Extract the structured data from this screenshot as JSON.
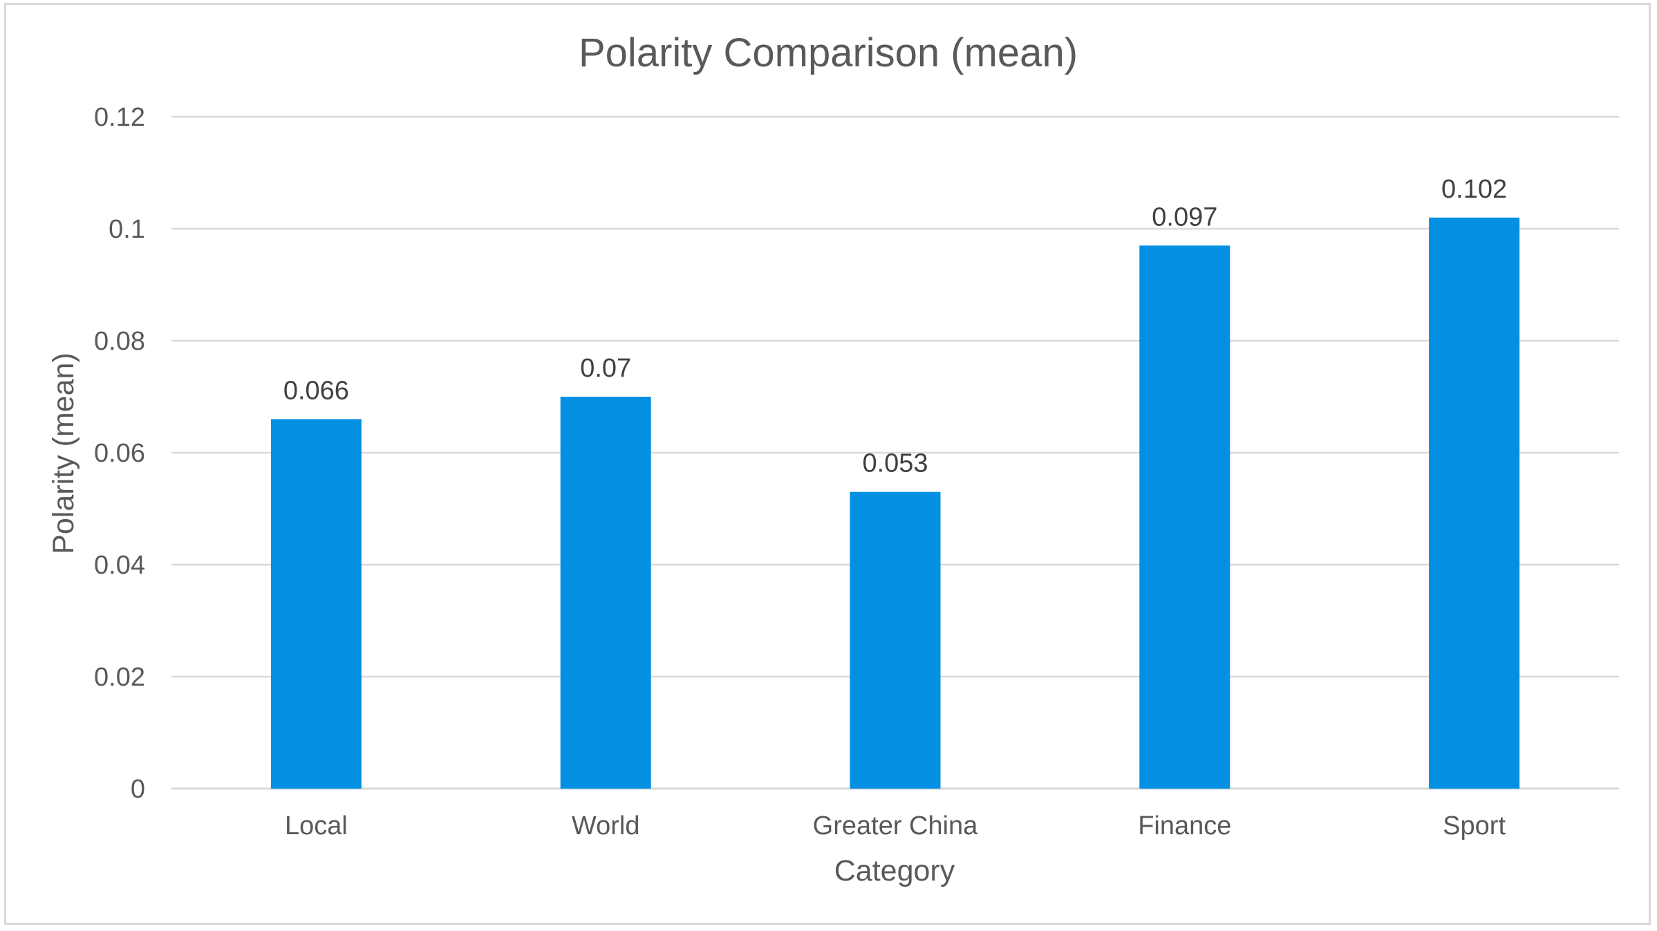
{
  "chart_data": {
    "type": "bar",
    "title": "Polarity Comparison (mean)",
    "xlabel": "Category",
    "ylabel": "Polarity (mean)",
    "categories": [
      "Local",
      "World",
      "Greater China",
      "Finance",
      "Sport"
    ],
    "values": [
      0.066,
      0.07,
      0.053,
      0.097,
      0.102
    ],
    "data_labels": [
      "0.066",
      "0.07",
      "0.053",
      "0.097",
      "0.102"
    ],
    "y_ticks": [
      "0",
      "0.02",
      "0.04",
      "0.06",
      "0.08",
      "0.1",
      "0.12"
    ],
    "y_tick_values": [
      0,
      0.02,
      0.04,
      0.06,
      0.08,
      0.1,
      0.12
    ],
    "ylim": [
      0,
      0.12
    ],
    "grid": true,
    "legend": "none",
    "bar_color": "#0390e3"
  }
}
